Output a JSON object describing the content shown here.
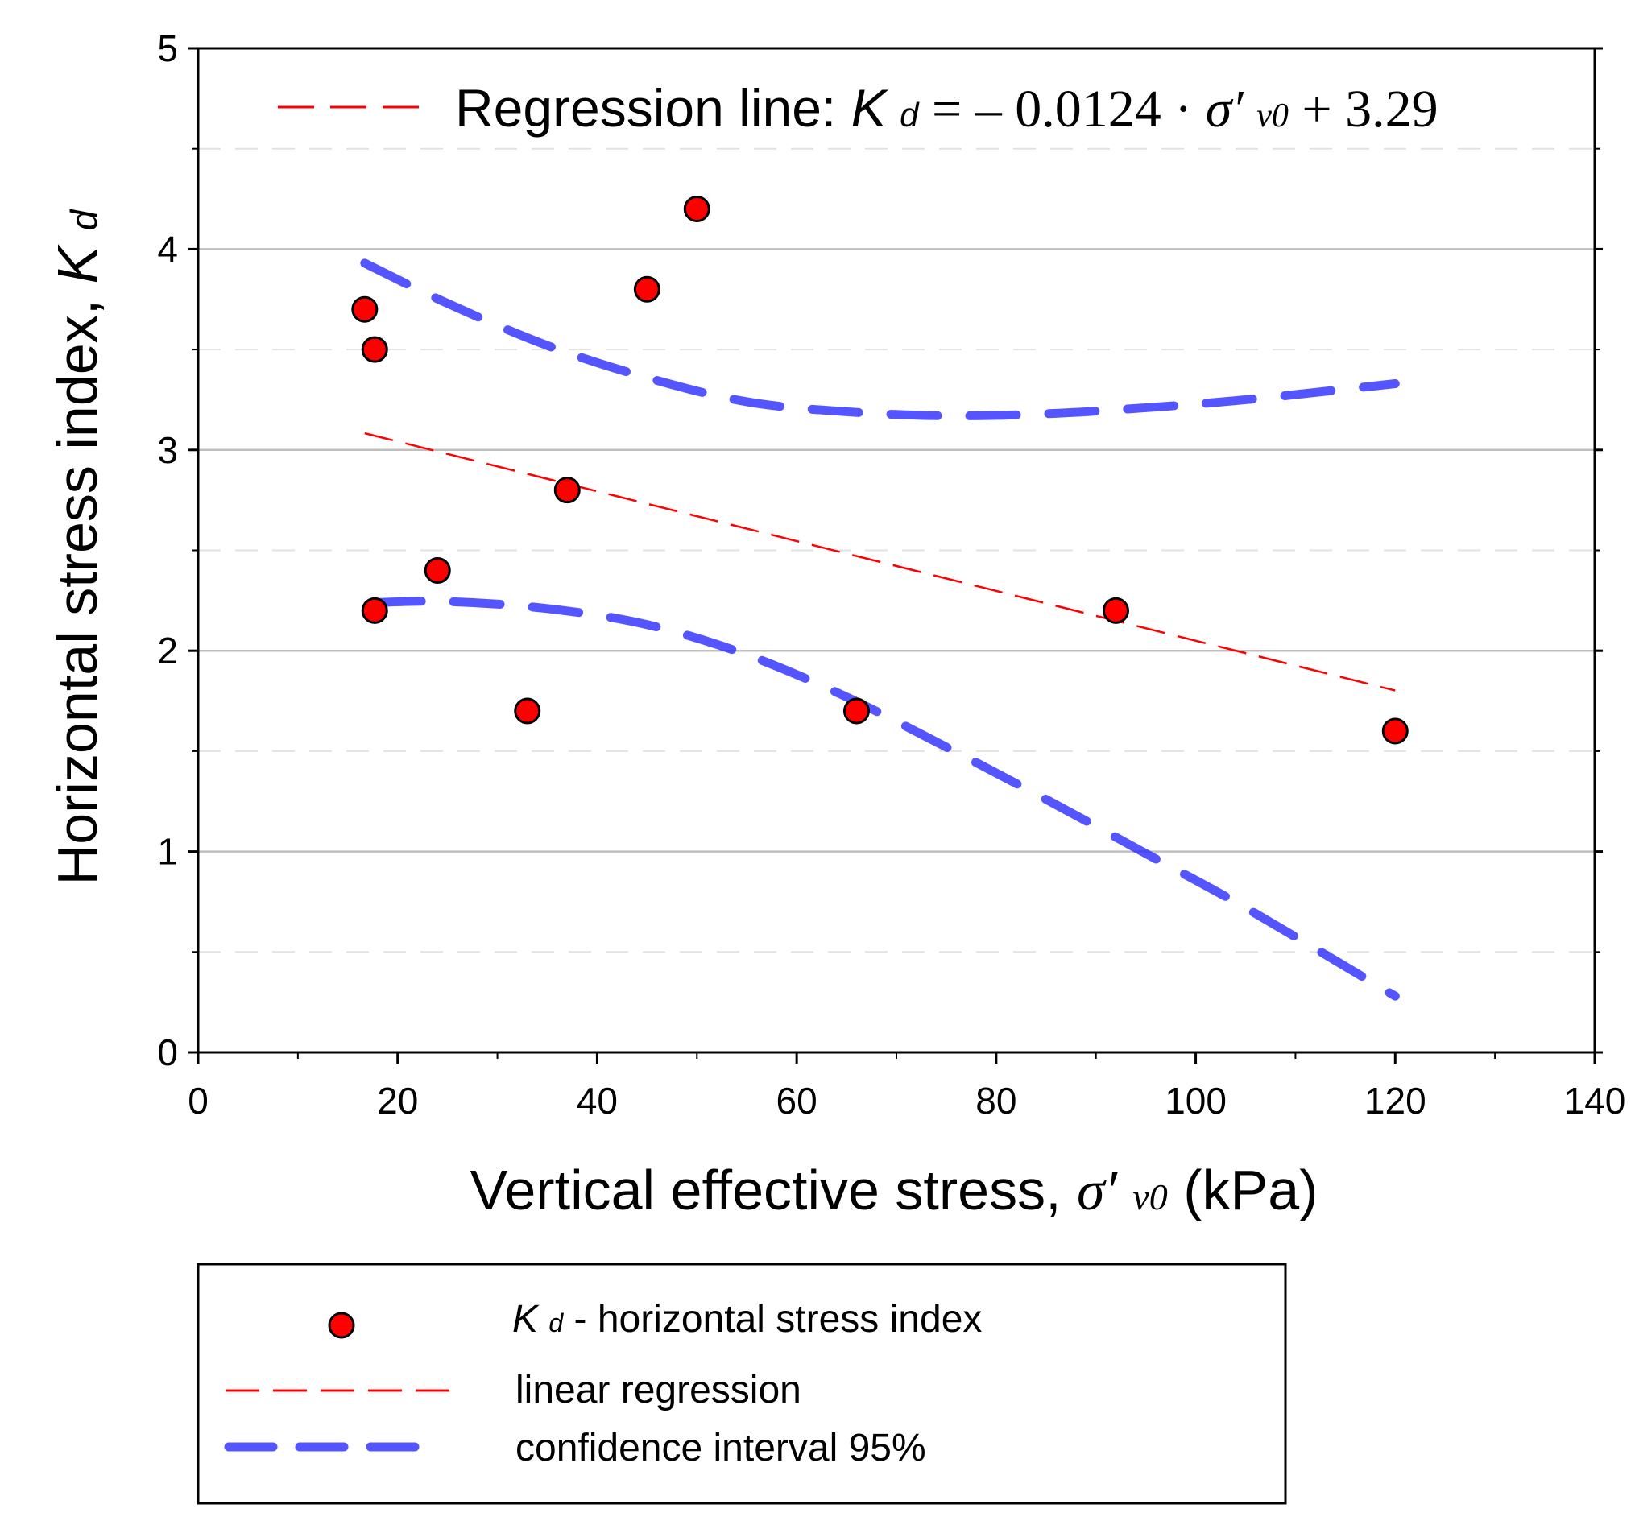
{
  "chart_data": {
    "type": "scatter",
    "title": "",
    "xlabel": {
      "text": "Vertical effective stress, ",
      "symbol": "σ′",
      "subscript": "v0",
      "unit": " (kPa)"
    },
    "ylabel": {
      "text": "Horizontal stress index, ",
      "symbol": "K",
      "subscript": "d"
    },
    "xlim": [
      0,
      140
    ],
    "ylim": [
      0,
      5
    ],
    "xticks": [
      0,
      20,
      40,
      60,
      80,
      100,
      120,
      140
    ],
    "yticks": [
      0,
      1,
      2,
      3,
      4,
      5
    ],
    "grid": "horizontal",
    "annotation": {
      "label": "Regression line: ",
      "symbol": "K",
      "subscript": "d",
      "equation_start": " = – 0.0124 · ",
      "sigma": "σ′",
      "sigma_subscript": "v0",
      "equation_end": "+ 3.29"
    },
    "points": {
      "name": "K_d - horizontal stress index",
      "color": "#ff0000",
      "x": [
        16.7,
        17.7,
        17.7,
        24,
        33,
        37,
        45,
        50,
        66,
        92,
        120
      ],
      "y": [
        3.7,
        3.5,
        2.2,
        2.4,
        1.7,
        2.8,
        3.8,
        4.2,
        1.7,
        2.2,
        1.6
      ]
    },
    "regression": {
      "name": "linear regression",
      "color": "#ff0000",
      "slope": -0.0124,
      "intercept": 3.29,
      "x_range": [
        16.7,
        120
      ]
    },
    "confidence_upper": {
      "name": "confidence interval 95%",
      "color": "#2a2aff",
      "x": [
        16.7,
        25,
        35,
        45,
        55,
        65,
        75,
        85,
        95,
        105,
        120
      ],
      "y": [
        3.93,
        3.73,
        3.52,
        3.36,
        3.24,
        3.19,
        3.17,
        3.18,
        3.21,
        3.25,
        3.33
      ]
    },
    "confidence_lower": {
      "name": "confidence interval 95%",
      "color": "#2a2aff",
      "x": [
        17.7,
        25,
        35,
        45,
        55,
        65,
        75,
        85,
        95,
        105,
        120
      ],
      "y": [
        2.24,
        2.245,
        2.21,
        2.13,
        1.98,
        1.77,
        1.52,
        1.26,
        0.99,
        0.72,
        0.28
      ]
    },
    "legend": {
      "position": "bottom-left",
      "items": [
        {
          "kind": "marker",
          "symbol": "K",
          "subscript": "d",
          "label": " - horizontal stress index"
        },
        {
          "kind": "regression",
          "label": "linear regression"
        },
        {
          "kind": "confidence",
          "label": "confidence interval 95%"
        }
      ]
    }
  }
}
